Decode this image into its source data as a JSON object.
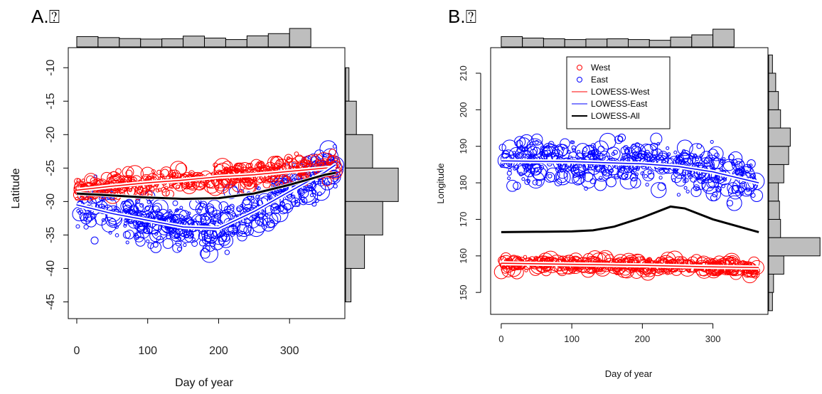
{
  "panels": [
    {
      "label": "A.⍰"
    },
    {
      "label": "B.⍰"
    }
  ],
  "chart_data": [
    {
      "type": "scatter",
      "panel": "A",
      "xlabel": "Day of year",
      "ylabel": "Latitude",
      "xlim": [
        -12,
        378
      ],
      "ylim": [
        -47.5,
        -7
      ],
      "xticks": [
        0,
        100,
        200,
        300
      ],
      "yticks": [
        -10,
        -15,
        -20,
        -25,
        -30,
        -35,
        -40,
        -45
      ],
      "colors": {
        "West": "#ff0000",
        "East": "#0000ff",
        "All": "#000000"
      },
      "series": [
        {
          "name": "LOWESS-West",
          "x": [
            0,
            50,
            100,
            150,
            200,
            250,
            300,
            350,
            365
          ],
          "y": [
            -28.3,
            -27.7,
            -27.2,
            -26.8,
            -26.3,
            -26.0,
            -25.5,
            -25.0,
            -24.9
          ]
        },
        {
          "name": "LOWESS-East",
          "x": [
            0,
            50,
            100,
            150,
            200,
            250,
            300,
            350,
            365
          ],
          "y": [
            -30.5,
            -31.8,
            -32.8,
            -33.8,
            -34.0,
            -31.5,
            -28.5,
            -25.6,
            -24.5
          ]
        },
        {
          "name": "LOWESS-All",
          "x": [
            0,
            50,
            100,
            150,
            200,
            250,
            300,
            350,
            365
          ],
          "y": [
            -28.8,
            -29.1,
            -29.4,
            -29.6,
            -29.5,
            -28.8,
            -27.5,
            -26.0,
            -25.7
          ]
        }
      ],
      "top_histogram": {
        "bin_width": 30,
        "heights": [
          0.42,
          0.38,
          0.34,
          0.32,
          0.33,
          0.44,
          0.36,
          0.3,
          0.45,
          0.54,
          0.75
        ]
      },
      "right_histogram": {
        "bins": [
          [
            -10,
            -15
          ],
          [
            -15,
            -20
          ],
          [
            -20,
            -25
          ],
          [
            -25,
            -30
          ],
          [
            -30,
            -35
          ],
          [
            -35,
            -40
          ],
          [
            -40,
            -45
          ]
        ],
        "heights": [
          0.05,
          0.16,
          0.4,
          0.78,
          0.55,
          0.28,
          0.08
        ]
      }
    },
    {
      "type": "scatter",
      "panel": "B",
      "xlabel": "Day of year",
      "ylabel": "Longitude",
      "xlim": [
        -15,
        378
      ],
      "ylim": [
        144,
        217
      ],
      "xticks": [
        0,
        100,
        200,
        300
      ],
      "yticks": [
        150,
        160,
        170,
        180,
        190,
        200,
        210
      ],
      "legend": {
        "placement": "top-center",
        "entries": [
          {
            "label": "West",
            "kind": "point",
            "color": "#ff0000"
          },
          {
            "label": "East",
            "kind": "point",
            "color": "#0000ff"
          },
          {
            "label": "LOWESS-West",
            "kind": "line",
            "color": "#ff0000"
          },
          {
            "label": "LOWESS-East",
            "kind": "line",
            "color": "#0000ff"
          },
          {
            "label": "LOWESS-All",
            "kind": "line",
            "color": "#000000"
          }
        ]
      },
      "series": [
        {
          "name": "LOWESS-West",
          "x": [
            0,
            100,
            200,
            300,
            365
          ],
          "y": [
            158,
            157.7,
            157.4,
            157,
            156.8
          ]
        },
        {
          "name": "LOWESS-East",
          "x": [
            0,
            100,
            200,
            250,
            300,
            365
          ],
          "y": [
            186,
            185.8,
            185.2,
            184.5,
            183,
            180
          ]
        },
        {
          "name": "LOWESS-All",
          "x": [
            0,
            50,
            100,
            130,
            160,
            200,
            240,
            260,
            300,
            365
          ],
          "y": [
            166.5,
            166.6,
            166.7,
            167,
            168,
            170.5,
            173.5,
            173,
            170,
            166.5
          ]
        }
      ],
      "top_histogram": {
        "bin_width": 30,
        "heights": [
          0.42,
          0.36,
          0.33,
          0.3,
          0.32,
          0.33,
          0.3,
          0.27,
          0.4,
          0.49,
          0.72
        ]
      },
      "right_histogram": {
        "bins": [
          [
            145,
            150
          ],
          [
            150,
            155
          ],
          [
            155,
            160
          ],
          [
            160,
            165
          ],
          [
            165,
            170
          ],
          [
            170,
            175
          ],
          [
            175,
            180
          ],
          [
            180,
            185
          ],
          [
            185,
            190
          ],
          [
            190,
            195
          ],
          [
            195,
            200
          ],
          [
            200,
            205
          ],
          [
            205,
            210
          ],
          [
            210,
            215
          ]
        ],
        "heights": [
          0.07,
          0.09,
          0.28,
          0.95,
          0.22,
          0.2,
          0.18,
          0.28,
          0.37,
          0.4,
          0.22,
          0.18,
          0.13,
          0.07
        ]
      }
    }
  ]
}
